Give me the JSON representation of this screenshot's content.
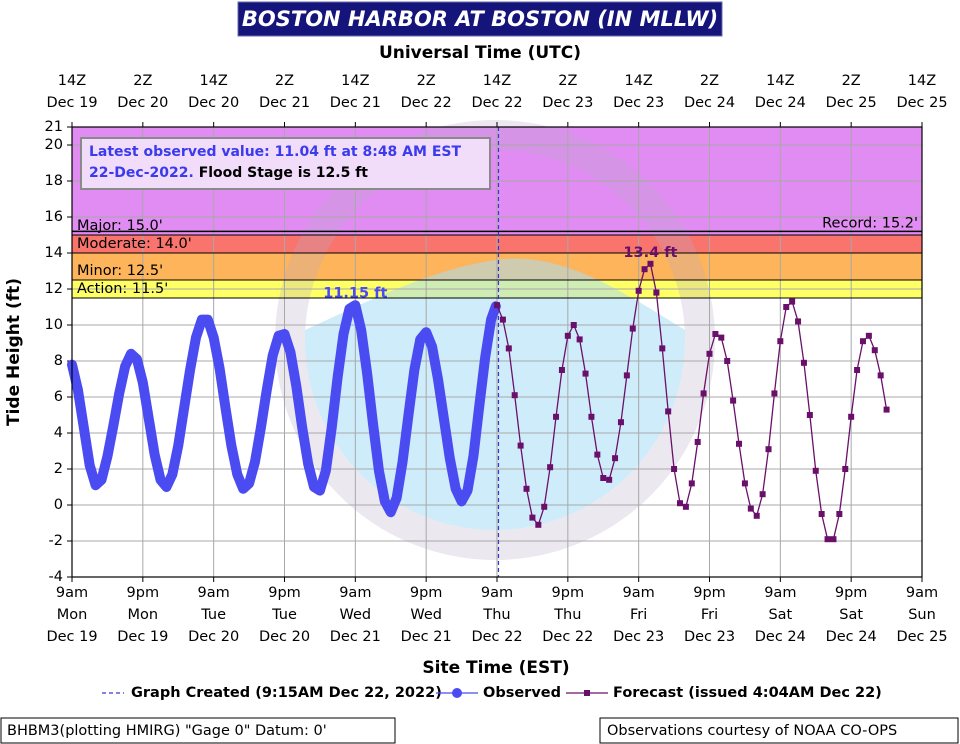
{
  "chart_data": {
    "type": "line",
    "title": "BOSTON HARBOR AT BOSTON (IN MLLW)",
    "x2_axis_label": "Universal Time (UTC)",
    "x_axis_label": "Site Time (EST)",
    "y_axis_label": "Tide Height (ft)",
    "xlim": [
      "2022-12-19T09:00-05:00",
      "2022-12-25T09:00-05:00"
    ],
    "ylim": [
      -4,
      21
    ],
    "yticks": [
      -4,
      -2,
      0,
      2,
      4,
      6,
      8,
      10,
      12,
      14,
      16,
      18,
      20,
      21
    ],
    "xticks": [
      {
        "value": "2022-12-19T09:00-05:00",
        "label": [
          "9am",
          "Mon",
          "Dec 19"
        ]
      },
      {
        "value": "2022-12-19T21:00-05:00",
        "label": [
          "9pm",
          "Mon",
          "Dec 19"
        ]
      },
      {
        "value": "2022-12-20T09:00-05:00",
        "label": [
          "9am",
          "Tue",
          "Dec 20"
        ]
      },
      {
        "value": "2022-12-20T21:00-05:00",
        "label": [
          "9pm",
          "Tue",
          "Dec 20"
        ]
      },
      {
        "value": "2022-12-21T09:00-05:00",
        "label": [
          "9am",
          "Wed",
          "Dec 21"
        ]
      },
      {
        "value": "2022-12-21T21:00-05:00",
        "label": [
          "9pm",
          "Wed",
          "Dec 21"
        ]
      },
      {
        "value": "2022-12-22T09:00-05:00",
        "label": [
          "9am",
          "Thu",
          "Dec 22"
        ]
      },
      {
        "value": "2022-12-22T21:00-05:00",
        "label": [
          "9pm",
          "Thu",
          "Dec 22"
        ]
      },
      {
        "value": "2022-12-23T09:00-05:00",
        "label": [
          "9am",
          "Fri",
          "Dec 23"
        ]
      },
      {
        "value": "2022-12-23T21:00-05:00",
        "label": [
          "9pm",
          "Fri",
          "Dec 23"
        ]
      },
      {
        "value": "2022-12-24T09:00-05:00",
        "label": [
          "9am",
          "Sat",
          "Dec 24"
        ]
      },
      {
        "value": "2022-12-24T21:00-05:00",
        "label": [
          "9pm",
          "Sat",
          "Dec 24"
        ]
      },
      {
        "value": "2022-12-25T09:00-05:00",
        "label": [
          "9am",
          "Sun",
          "Dec 25"
        ]
      }
    ],
    "x2ticks": [
      {
        "value": "2022-12-19T14:00Z",
        "label": [
          "14Z",
          "Dec 19"
        ]
      },
      {
        "value": "2022-12-20T02:00Z",
        "label": [
          "2Z",
          "Dec 20"
        ]
      },
      {
        "value": "2022-12-20T14:00Z",
        "label": [
          "14Z",
          "Dec 20"
        ]
      },
      {
        "value": "2022-12-21T02:00Z",
        "label": [
          "2Z",
          "Dec 21"
        ]
      },
      {
        "value": "2022-12-21T14:00Z",
        "label": [
          "14Z",
          "Dec 21"
        ]
      },
      {
        "value": "2022-12-22T02:00Z",
        "label": [
          "2Z",
          "Dec 22"
        ]
      },
      {
        "value": "2022-12-22T14:00Z",
        "label": [
          "14Z",
          "Dec 22"
        ]
      },
      {
        "value": "2022-12-23T02:00Z",
        "label": [
          "2Z",
          "Dec 23"
        ]
      },
      {
        "value": "2022-12-23T14:00Z",
        "label": [
          "14Z",
          "Dec 23"
        ]
      },
      {
        "value": "2022-12-24T02:00Z",
        "label": [
          "2Z",
          "Dec 24"
        ]
      },
      {
        "value": "2022-12-24T14:00Z",
        "label": [
          "14Z",
          "Dec 24"
        ]
      },
      {
        "value": "2022-12-25T02:00Z",
        "label": [
          "2Z",
          "Dec 25"
        ]
      },
      {
        "value": "2022-12-25T14:00Z",
        "label": [
          "14Z",
          "Dec 25"
        ]
      }
    ],
    "grid": true,
    "thresholds": [
      {
        "label": "Major: 15.0'",
        "value": 15,
        "color": "#e08cf2"
      },
      {
        "label": "Moderate: 14.0'",
        "value": 14,
        "color": "#f8746c"
      },
      {
        "label": "Minor: 12.5'",
        "value": 12.5,
        "color": "#fdb45a"
      },
      {
        "label": "Action: 11.5'",
        "value": 11.5,
        "color": "#ffff66"
      }
    ],
    "record": {
      "label": "Record: 15.2'",
      "value": 15.2
    },
    "info_box": {
      "latest_observed": "Latest observed value: 11.04 ft at 8:48 AM EST 22-Dec-2022.",
      "flood_stage": "Flood Stage is 12.5 ft"
    },
    "graph_created": {
      "name": "Graph Created (9:15AM Dec 22, 2022)",
      "x": "2022-12-22T09:15-05:00",
      "color": "#3636d8"
    },
    "series": [
      {
        "name": "Observed",
        "color": "#4b4bf2",
        "marker": "circle",
        "x": [
          "2022-12-19T09:00-05:00",
          "2022-12-19T10:00-05:00",
          "2022-12-19T11:00-05:00",
          "2022-12-19T12:00-05:00",
          "2022-12-19T13:00-05:00",
          "2022-12-19T14:00-05:00",
          "2022-12-19T15:00-05:00",
          "2022-12-19T16:00-05:00",
          "2022-12-19T17:00-05:00",
          "2022-12-19T18:00-05:00",
          "2022-12-19T19:00-05:00",
          "2022-12-19T20:00-05:00",
          "2022-12-19T21:00-05:00",
          "2022-12-19T22:00-05:00",
          "2022-12-19T23:00-05:00",
          "2022-12-20T00:00-05:00",
          "2022-12-20T01:00-05:00",
          "2022-12-20T02:00-05:00",
          "2022-12-20T03:00-05:00",
          "2022-12-20T04:00-05:00",
          "2022-12-20T05:00-05:00",
          "2022-12-20T06:00-05:00",
          "2022-12-20T07:00-05:00",
          "2022-12-20T08:00-05:00",
          "2022-12-20T09:00-05:00",
          "2022-12-20T10:00-05:00",
          "2022-12-20T11:00-05:00",
          "2022-12-20T12:00-05:00",
          "2022-12-20T13:00-05:00",
          "2022-12-20T14:00-05:00",
          "2022-12-20T15:00-05:00",
          "2022-12-20T16:00-05:00",
          "2022-12-20T17:00-05:00",
          "2022-12-20T18:00-05:00",
          "2022-12-20T19:00-05:00",
          "2022-12-20T20:00-05:00",
          "2022-12-20T21:00-05:00",
          "2022-12-20T22:00-05:00",
          "2022-12-20T23:00-05:00",
          "2022-12-21T00:00-05:00",
          "2022-12-21T01:00-05:00",
          "2022-12-21T02:00-05:00",
          "2022-12-21T03:00-05:00",
          "2022-12-21T04:00-05:00",
          "2022-12-21T05:00-05:00",
          "2022-12-21T06:00-05:00",
          "2022-12-21T07:00-05:00",
          "2022-12-21T08:00-05:00",
          "2022-12-21T09:00-05:00",
          "2022-12-21T10:00-05:00",
          "2022-12-21T11:00-05:00",
          "2022-12-21T12:00-05:00",
          "2022-12-21T13:00-05:00",
          "2022-12-21T14:00-05:00",
          "2022-12-21T15:00-05:00",
          "2022-12-21T16:00-05:00",
          "2022-12-21T17:00-05:00",
          "2022-12-21T18:00-05:00",
          "2022-12-21T19:00-05:00",
          "2022-12-21T20:00-05:00",
          "2022-12-21T21:00-05:00",
          "2022-12-21T22:00-05:00",
          "2022-12-21T23:00-05:00",
          "2022-12-22T00:00-05:00",
          "2022-12-22T01:00-05:00",
          "2022-12-22T02:00-05:00",
          "2022-12-22T03:00-05:00",
          "2022-12-22T04:00-05:00",
          "2022-12-22T05:00-05:00",
          "2022-12-22T06:00-05:00",
          "2022-12-22T07:00-05:00",
          "2022-12-22T08:00-05:00",
          "2022-12-22T08:48-05:00"
        ],
        "values": [
          7.8,
          6.4,
          4.3,
          2.2,
          1.1,
          1.4,
          2.7,
          4.4,
          6.2,
          7.7,
          8.4,
          8.1,
          6.8,
          4.8,
          2.8,
          1.4,
          1.0,
          1.7,
          3.3,
          5.4,
          7.5,
          9.3,
          10.3,
          10.3,
          9.3,
          7.6,
          5.4,
          3.3,
          1.7,
          0.9,
          1.2,
          2.4,
          4.3,
          6.4,
          8.3,
          9.4,
          9.5,
          8.5,
          6.6,
          4.3,
          2.3,
          1.0,
          0.8,
          1.9,
          4.3,
          7.1,
          9.5,
          10.9,
          11.1,
          9.7,
          7.3,
          4.5,
          1.9,
          0.2,
          -0.4,
          0.4,
          2.4,
          5.0,
          7.5,
          9.2,
          9.6,
          8.8,
          7.0,
          4.8,
          2.6,
          0.9,
          0.2,
          0.8,
          2.7,
          5.5,
          8.2,
          10.3,
          11.04
        ],
        "peak": {
          "x": "2022-12-21T09:00-05:00",
          "value": 11.15,
          "label": "11.15 ft"
        }
      },
      {
        "name": "Forecast (issued 4:04AM Dec 22)",
        "color": "#6a106a",
        "marker": "square",
        "x": [
          "2022-12-22T09:00-05:00",
          "2022-12-22T10:00-05:00",
          "2022-12-22T11:00-05:00",
          "2022-12-22T12:00-05:00",
          "2022-12-22T13:00-05:00",
          "2022-12-22T14:00-05:00",
          "2022-12-22T15:00-05:00",
          "2022-12-22T16:00-05:00",
          "2022-12-22T17:00-05:00",
          "2022-12-22T18:00-05:00",
          "2022-12-22T19:00-05:00",
          "2022-12-22T20:00-05:00",
          "2022-12-22T21:00-05:00",
          "2022-12-22T22:00-05:00",
          "2022-12-22T23:00-05:00",
          "2022-12-23T00:00-05:00",
          "2022-12-23T01:00-05:00",
          "2022-12-23T02:00-05:00",
          "2022-12-23T03:00-05:00",
          "2022-12-23T04:00-05:00",
          "2022-12-23T05:00-05:00",
          "2022-12-23T06:00-05:00",
          "2022-12-23T07:00-05:00",
          "2022-12-23T08:00-05:00",
          "2022-12-23T09:00-05:00",
          "2022-12-23T10:00-05:00",
          "2022-12-23T11:00-05:00",
          "2022-12-23T12:00-05:00",
          "2022-12-23T13:00-05:00",
          "2022-12-23T14:00-05:00",
          "2022-12-23T15:00-05:00",
          "2022-12-23T16:00-05:00",
          "2022-12-23T17:00-05:00",
          "2022-12-23T18:00-05:00",
          "2022-12-23T19:00-05:00",
          "2022-12-23T20:00-05:00",
          "2022-12-23T21:00-05:00",
          "2022-12-23T22:00-05:00",
          "2022-12-23T23:00-05:00",
          "2022-12-24T00:00-05:00",
          "2022-12-24T01:00-05:00",
          "2022-12-24T02:00-05:00",
          "2022-12-24T03:00-05:00",
          "2022-12-24T04:00-05:00",
          "2022-12-24T05:00-05:00",
          "2022-12-24T06:00-05:00",
          "2022-12-24T07:00-05:00",
          "2022-12-24T08:00-05:00",
          "2022-12-24T09:00-05:00",
          "2022-12-24T10:00-05:00",
          "2022-12-24T11:00-05:00",
          "2022-12-24T12:00-05:00",
          "2022-12-24T13:00-05:00",
          "2022-12-24T14:00-05:00",
          "2022-12-24T15:00-05:00",
          "2022-12-24T16:00-05:00",
          "2022-12-24T17:00-05:00",
          "2022-12-24T18:00-05:00",
          "2022-12-24T19:00-05:00",
          "2022-12-24T20:00-05:00",
          "2022-12-24T21:00-05:00",
          "2022-12-24T22:00-05:00",
          "2022-12-24T23:00-05:00",
          "2022-12-25T00:00-05:00",
          "2022-12-25T01:00-05:00",
          "2022-12-25T02:00-05:00",
          "2022-12-25T03:00-05:00"
        ],
        "values": [
          11.1,
          10.3,
          8.7,
          6.1,
          3.3,
          0.9,
          -0.7,
          -1.1,
          -0.1,
          2.1,
          4.9,
          7.5,
          9.4,
          10.0,
          9.2,
          7.3,
          4.9,
          2.8,
          1.5,
          1.4,
          2.6,
          4.6,
          7.2,
          9.8,
          11.9,
          13.1,
          13.4,
          11.8,
          8.7,
          5.2,
          2.0,
          0.1,
          -0.1,
          1.2,
          3.5,
          6.2,
          8.4,
          9.5,
          9.3,
          8.0,
          5.8,
          3.4,
          1.2,
          -0.2,
          -0.6,
          0.6,
          3.1,
          6.2,
          9.1,
          11.0,
          11.3,
          10.2,
          7.9,
          5.0,
          1.9,
          -0.5,
          -1.9,
          -1.9,
          -0.5,
          2.0,
          4.9,
          7.5,
          9.1,
          9.4,
          8.6,
          7.2,
          5.3
        ],
        "peak": {
          "x": "2022-12-23T11:00-05:00",
          "value": 13.4,
          "label": "13.4 ft"
        }
      }
    ],
    "footer_left": "BHBM3(plotting HMIRG) \"Gage 0\" Datum: 0'",
    "footer_right": "Observations courtesy of NOAA CO-OPS"
  }
}
